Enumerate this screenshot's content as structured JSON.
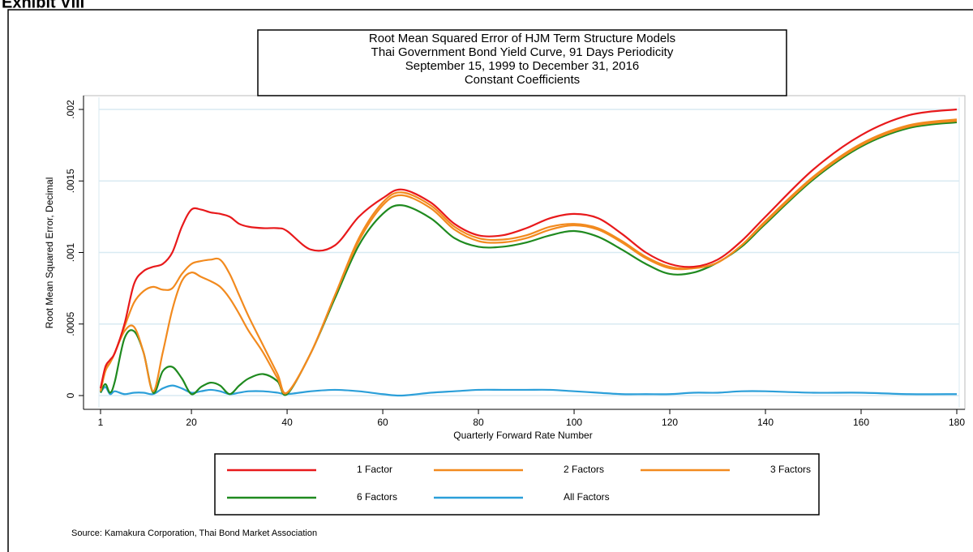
{
  "header": {
    "exhibit": "Exhibit VIII"
  },
  "chart_data": {
    "type": "line",
    "title": [
      "Root Mean Squared Error of HJM Term Structure Models",
      "Thai Government Bond Yield Curve, 91 Days Periodicity",
      "September 15, 1999 to December 31, 2016",
      "Constant Coefficients"
    ],
    "x_label": "Quarterly Forward Rate Number",
    "y_label": "Root Mean Squared Error, Decimal",
    "x": [
      1,
      2,
      3,
      4,
      6,
      8,
      10,
      12,
      14,
      16,
      18,
      20,
      22,
      24,
      26,
      28,
      30,
      32,
      35,
      38,
      40,
      45,
      50,
      55,
      60,
      64,
      70,
      75,
      80,
      85,
      90,
      95,
      100,
      105,
      110,
      115,
      120,
      125,
      130,
      135,
      140,
      150,
      160,
      170,
      180
    ],
    "series": [
      {
        "name": "1 Factor",
        "color": "#e8191b",
        "values": [
          5e-05,
          0.0002,
          0.00025,
          0.0003,
          0.0005,
          0.00078,
          0.00087,
          0.0009,
          0.00092,
          0.001,
          0.00118,
          0.0013,
          0.0013,
          0.00128,
          0.00127,
          0.00125,
          0.0012,
          0.00118,
          0.00117,
          0.00117,
          0.00115,
          0.00102,
          0.00105,
          0.00125,
          0.00138,
          0.00144,
          0.00135,
          0.0012,
          0.00112,
          0.00112,
          0.00117,
          0.00124,
          0.00127,
          0.00124,
          0.00113,
          0.001,
          0.00092,
          0.0009,
          0.00095,
          0.00108,
          0.00125,
          0.00158,
          0.00182,
          0.00196,
          0.002
        ]
      },
      {
        "name": "2 Factors",
        "color": "#f28a1e",
        "values": [
          3e-05,
          0.00018,
          0.00023,
          0.0003,
          0.00048,
          0.00065,
          0.00073,
          0.00076,
          0.00074,
          0.00075,
          0.00085,
          0.00092,
          0.00094,
          0.00095,
          0.00095,
          0.00085,
          0.0007,
          0.00055,
          0.00035,
          0.00015,
          2e-05,
          0.0003,
          0.0007,
          0.0011,
          0.00135,
          0.00142,
          0.00133,
          0.00118,
          0.0011,
          0.00109,
          0.00112,
          0.00118,
          0.0012,
          0.00117,
          0.00108,
          0.00097,
          0.0009,
          0.00089,
          0.00093,
          0.00105,
          0.00122,
          0.00153,
          0.00176,
          0.00189,
          0.00193
        ]
      },
      {
        "name": "3 Factors",
        "color": "#f28a1e",
        "values": [
          3e-05,
          0.00017,
          0.00023,
          0.0003,
          0.00045,
          0.00048,
          0.0003,
          3e-05,
          0.0003,
          0.0006,
          0.0008,
          0.00086,
          0.00083,
          0.0008,
          0.00076,
          0.00068,
          0.00057,
          0.00045,
          0.0003,
          0.00012,
          2e-05,
          0.0003,
          0.0007,
          0.00108,
          0.00133,
          0.0014,
          0.00131,
          0.00116,
          0.00108,
          0.00107,
          0.0011,
          0.00116,
          0.00119,
          0.00116,
          0.00107,
          0.00096,
          0.00089,
          0.00089,
          0.00093,
          0.00105,
          0.00121,
          0.00152,
          0.00175,
          0.00188,
          0.00192
        ]
      },
      {
        "name": "6 Factors",
        "color": "#1f8a1f",
        "values": [
          2e-05,
          8e-05,
          2e-05,
          0.0001,
          0.0004,
          0.00045,
          0.0003,
          2e-05,
          0.00017,
          0.0002,
          0.00012,
          1e-05,
          6e-05,
          9e-05,
          7e-05,
          1e-05,
          7e-05,
          0.00012,
          0.00015,
          0.0001,
          1e-05,
          0.0003,
          0.00068,
          0.00105,
          0.00127,
          0.00133,
          0.00124,
          0.0011,
          0.00104,
          0.00104,
          0.00107,
          0.00112,
          0.00115,
          0.00111,
          0.00102,
          0.00092,
          0.00085,
          0.00086,
          0.00093,
          0.00104,
          0.0012,
          0.00151,
          0.00174,
          0.00187,
          0.00191
        ]
      },
      {
        "name": "All Factors",
        "color": "#2b9fd9",
        "values": [
          2e-05,
          6e-05,
          1e-05,
          3e-05,
          1e-05,
          2e-05,
          2e-05,
          1e-05,
          5e-05,
          7e-05,
          5e-05,
          2e-05,
          3e-05,
          4e-05,
          3e-05,
          1e-05,
          2e-05,
          3e-05,
          3e-05,
          2e-05,
          1e-05,
          3e-05,
          4e-05,
          3e-05,
          1e-05,
          0,
          2e-05,
          3e-05,
          4e-05,
          4e-05,
          4e-05,
          4e-05,
          3e-05,
          2e-05,
          1e-05,
          1e-05,
          1e-05,
          2e-05,
          2e-05,
          3e-05,
          3e-05,
          2e-05,
          2e-05,
          1e-05,
          1e-05
        ]
      }
    ],
    "xlim": [
      1,
      180
    ],
    "xticks": [
      1,
      20,
      40,
      60,
      80,
      100,
      120,
      140,
      160,
      180
    ],
    "ylim": [
      0,
      0.002
    ],
    "yticks": [
      0,
      {
        "value": 0.0005,
        "label": ".0005"
      },
      {
        "value": 0.001,
        "label": ".001"
      },
      {
        "value": 0.0015,
        "label": ".0015"
      },
      {
        "value": 0.002,
        "label": ".002"
      }
    ],
    "grid": true,
    "grid_color": "#d8eaf2",
    "legend": "bottom",
    "source": "Source: Kamakura Corporation, Thai Bond Market Association"
  }
}
